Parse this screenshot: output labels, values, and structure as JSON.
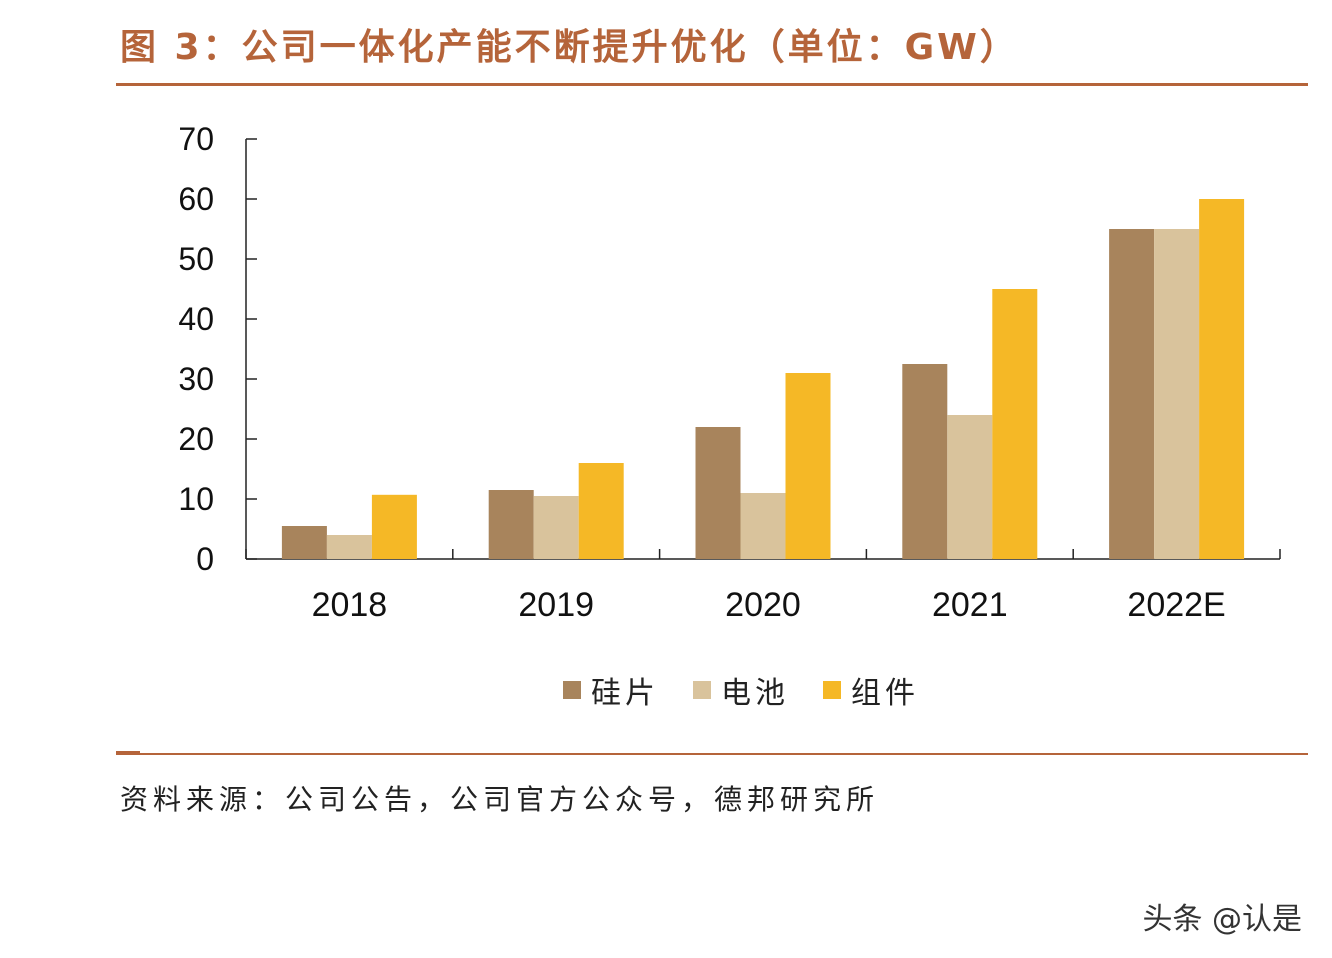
{
  "figure": {
    "title": "图 3：公司一体化产能不断提升优化（单位：GW）",
    "source": "资料来源：公司公告，公司官方公众号，德邦研究所",
    "watermark": "头条 @认是"
  },
  "colors": {
    "title": "#b5643a",
    "rule": "#b5643a",
    "axis": "#222222",
    "series": [
      "#a8845c",
      "#d9c39c",
      "#f5b826"
    ]
  },
  "chart_data": {
    "type": "bar",
    "categories": [
      "2018",
      "2019",
      "2020",
      "2021",
      "2022E"
    ],
    "series": [
      {
        "name": "硅片",
        "values": [
          5.5,
          11.5,
          22,
          32.5,
          55
        ]
      },
      {
        "name": "电池",
        "values": [
          4,
          10.5,
          11,
          24,
          55
        ]
      },
      {
        "name": "组件",
        "values": [
          10.7,
          16,
          31,
          45,
          60
        ]
      }
    ],
    "ylim": [
      0,
      70
    ],
    "yticks": [
      "0",
      "10",
      "20",
      "30",
      "40",
      "50",
      "60",
      "70"
    ],
    "grid": false,
    "legend_position": "bottom",
    "xlabel": "",
    "ylabel": ""
  }
}
